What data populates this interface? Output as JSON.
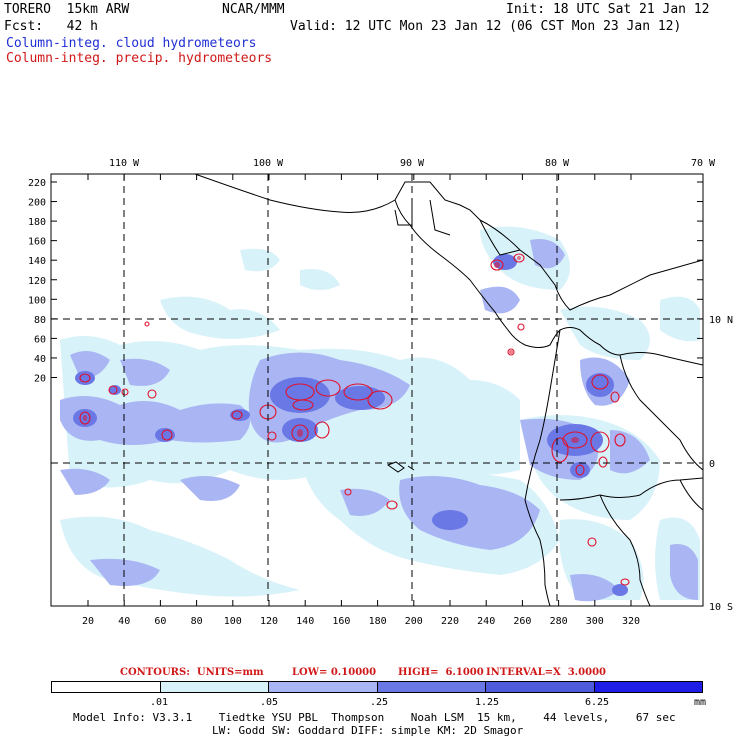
{
  "header": {
    "model": "TORERO  15km ARW",
    "center": "NCAR/MMM",
    "init": "Init: 18 UTC Sat 21 Jan 12",
    "fcst": "Fcst:   42 h",
    "valid": "Valid: 12 UTC Mon 23 Jan 12 (06 CST Mon 23 Jan 12)",
    "field1": "Column-integ. cloud hydrometeors",
    "field2": "Column-integ. precip. hydrometeors"
  },
  "colors": {
    "cloud_light": "#d8f2fa",
    "cloud_mid": "#a9b6f3",
    "cloud_dark": "#6a78e6",
    "cloud_darker": "#4e5cdc",
    "precip_contour": "#e0102a",
    "precip_fill": "#cc2040"
  },
  "map": {
    "top_labels": [
      "110 W",
      "100 W",
      "90 W",
      "80 W",
      "70 W"
    ],
    "right_labels": [
      "10 N",
      "0",
      "10 S"
    ],
    "left_ticks": [
      "220",
      "200",
      "180",
      "160",
      "140",
      "120",
      "100",
      "80",
      "60",
      "40",
      "20"
    ],
    "bottom_ticks": [
      "20",
      "40",
      "60",
      "80",
      "100",
      "120",
      "140",
      "160",
      "180",
      "200",
      "220",
      "240",
      "260",
      "280",
      "300",
      "320"
    ]
  },
  "footer": {
    "contours_label": "CONTOURS:  UNITS=mm",
    "contours_low": "LOW= 0.10000",
    "contours_high": "HIGH=  6.1000",
    "contours_interval": "INTERVAL=X  3.0000",
    "colorbar_labels": [
      ".01",
      ".05",
      ".25",
      "1.25",
      "6.25"
    ],
    "colorbar_unit": "mm",
    "colorbar_colors": [
      "#ffffff",
      "#d8f2fa",
      "#a9b6f3",
      "#6a78e6",
      "#4e5cdc",
      "#1e1ee6"
    ],
    "model_info_1": "Model Info: V3.3.1    Tiedtke YSU PBL  Thompson    Noah LSM  15 km,    44 levels,    67 sec",
    "model_info_2": "LW: Godd SW: Goddard DIFF: simple KM: 2D Smagor"
  }
}
